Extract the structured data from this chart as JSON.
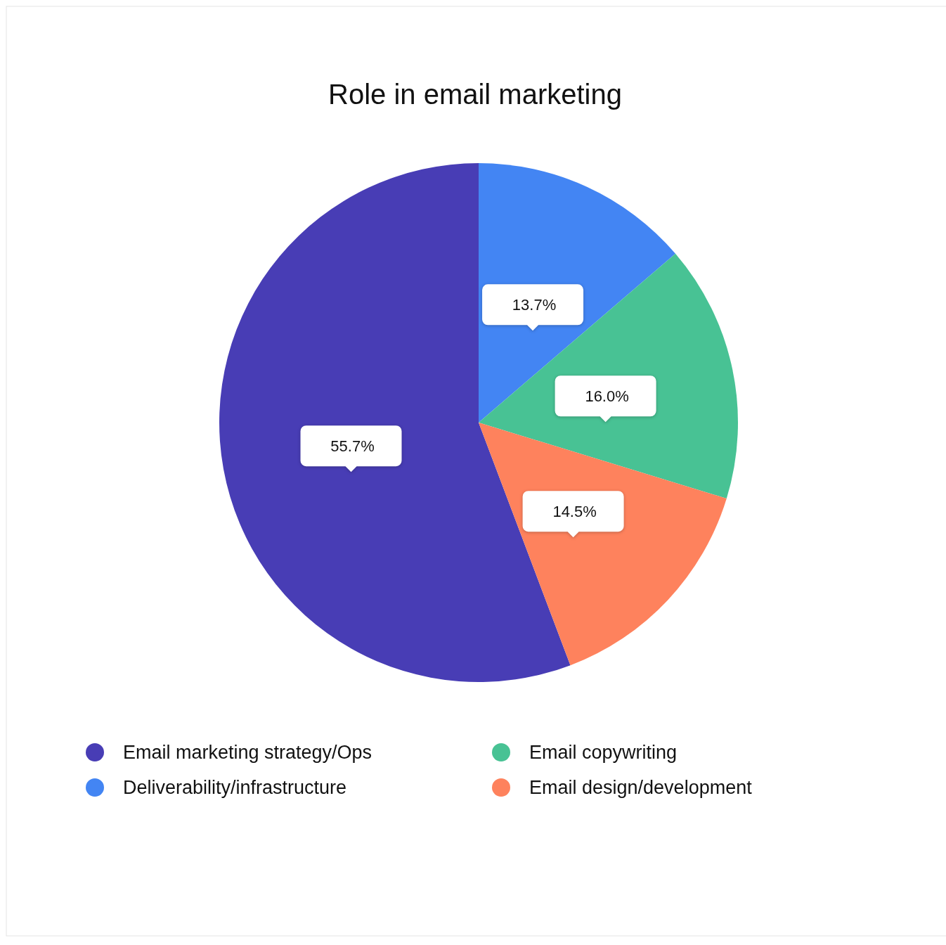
{
  "chart_data": {
    "type": "pie",
    "title": "Role in email marketing",
    "categories": [
      "Email marketing strategy/Ops",
      "Deliverability/infrastructure",
      "Email copywriting",
      "Email design/development"
    ],
    "values": [
      55.7,
      13.7,
      16.0,
      14.5
    ],
    "colors": [
      "#483db5",
      "#4385f3",
      "#48c294",
      "#fe825d"
    ],
    "value_labels": [
      "55.7%",
      "13.7%",
      "16.0%",
      "14.5%"
    ],
    "legend": "bottom"
  }
}
